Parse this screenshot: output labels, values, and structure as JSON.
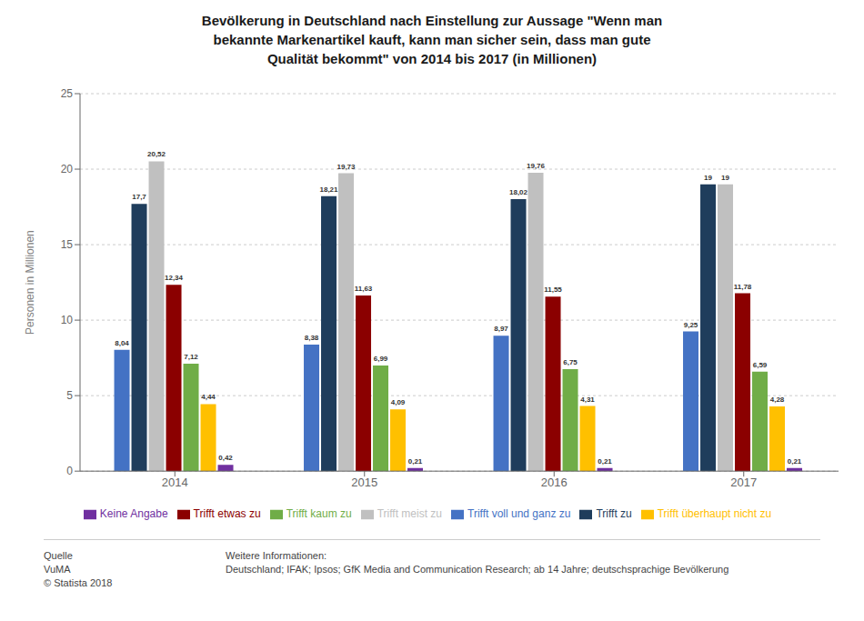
{
  "chart_data": {
    "type": "bar",
    "title": "Bevölkerung in Deutschland nach Einstellung zur Aussage \"Wenn man\nbekannte Markenartikel kauft, kann man sicher sein, dass man gute\nQualität bekommt\" von 2014 bis 2017 (in Millionen)",
    "ylabel": "Personen in Millionen",
    "categories": [
      "2014",
      "2015",
      "2016",
      "2017"
    ],
    "series": [
      {
        "name": "Trifft voll und ganz zu",
        "color": "#4472c4",
        "values": [
          8.04,
          8.38,
          8.97,
          9.25
        ],
        "value_labels": [
          "8,04",
          "8,38",
          "8,97",
          "9,25"
        ]
      },
      {
        "name": "Trifft zu",
        "color": "#1f3d5c",
        "values": [
          17.7,
          18.21,
          18.02,
          19.0
        ],
        "value_labels": [
          "17,7",
          "18,21",
          "18,02",
          "19"
        ]
      },
      {
        "name": "Trifft meist zu",
        "color": "#c0c0c0",
        "values": [
          20.52,
          19.73,
          19.76,
          19.0
        ],
        "value_labels": [
          "20,52",
          "19,73",
          "19,76",
          "19"
        ]
      },
      {
        "name": "Trifft etwas zu",
        "color": "#8b0000",
        "values": [
          12.34,
          11.63,
          11.55,
          11.78
        ],
        "value_labels": [
          "12,34",
          "11,63",
          "11,55",
          "11,78"
        ]
      },
      {
        "name": "Trifft kaum zu",
        "color": "#70ad47",
        "values": [
          7.12,
          6.99,
          6.75,
          6.59
        ],
        "value_labels": [
          "7,12",
          "6,99",
          "6,75",
          "6,59"
        ]
      },
      {
        "name": "Trifft überhaupt nicht zu",
        "color": "#ffc000",
        "values": [
          4.44,
          4.09,
          4.31,
          4.28
        ],
        "value_labels": [
          "4,44",
          "4,09",
          "4,31",
          "4,28"
        ]
      },
      {
        "name": "Keine Angabe",
        "color": "#7030a0",
        "values": [
          0.42,
          0.21,
          0.21,
          0.21
        ],
        "value_labels": [
          "0,42",
          "0,21",
          "0,21",
          "0,21"
        ]
      }
    ],
    "ylim": [
      0,
      25
    ],
    "yticks": [
      0,
      5,
      10,
      15,
      20,
      25
    ],
    "grid": true,
    "legend": "bottom",
    "data_labels": true,
    "annotations": [
      "Quelle\nVuMA\n© Statista 2018",
      "Weitere Informationen:\nDeutschland; IFAK; Ipsos; GfK Media and Communication Research; ab 14 Jahre; deutschsprachige Bevölkerung"
    ]
  }
}
